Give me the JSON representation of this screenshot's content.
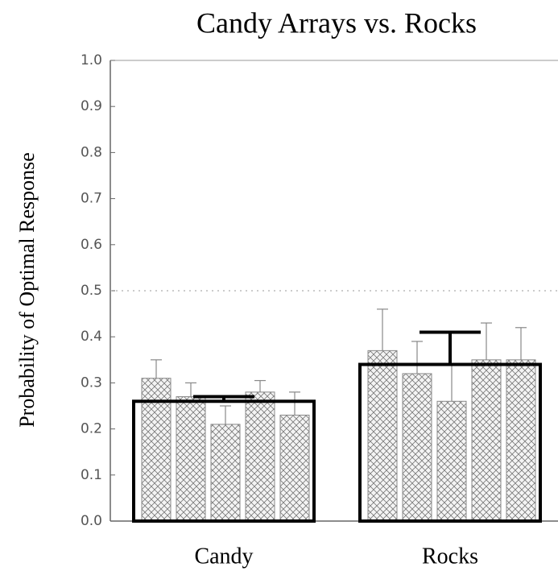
{
  "chart_data": {
    "type": "bar",
    "title": "Candy Arrays vs. Rocks",
    "ylabel": "Probability of Optimal Response",
    "categories": [
      "Candy",
      "Rocks"
    ],
    "values": [
      0.26,
      0.34
    ],
    "errors": [
      0.01,
      0.07
    ],
    "subbars": [
      [
        0.31,
        0.27,
        0.21,
        0.28,
        0.23
      ],
      [
        0.37,
        0.32,
        0.26,
        0.35,
        0.35
      ]
    ],
    "subbar_errors": [
      [
        0.04,
        0.03,
        0.04,
        0.025,
        0.05
      ],
      [
        0.09,
        0.07,
        0.08,
        0.08,
        0.07
      ]
    ],
    "reference_line": 0.5,
    "ylim": [
      0,
      1
    ],
    "yticks": [
      {
        "value": 0,
        "label": "0.0"
      },
      0.1,
      0.2,
      0.3,
      0.4,
      0.5,
      0.6,
      0.7,
      0.8,
      0.9,
      {
        "value": 1,
        "label": "1.0"
      }
    ]
  }
}
